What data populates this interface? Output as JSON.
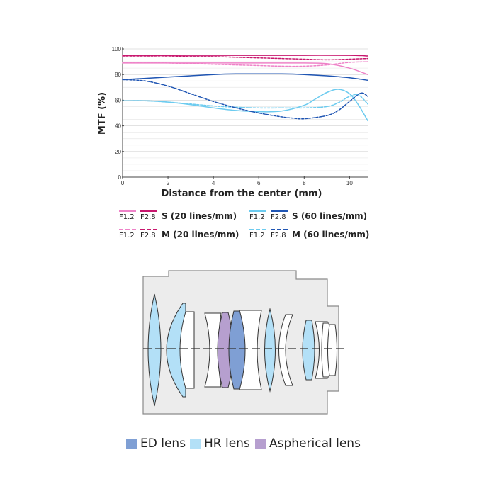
{
  "chart_data": {
    "type": "line",
    "title": "",
    "xlabel": "Distance from the center (mm)",
    "ylabel": "MTF (%)",
    "xlim": [
      0,
      10.8
    ],
    "ylim": [
      0,
      100
    ],
    "xticks": [
      "0",
      "2",
      "4",
      "6",
      "8",
      "10"
    ],
    "yticks": [
      "0",
      "20",
      "40",
      "60",
      "80",
      "100"
    ],
    "grid": true,
    "legend_position": "bottom",
    "series": [
      {
        "group": "S (20 lines/mm)",
        "aperture": "F1.2",
        "style": "solid",
        "color": "#ee82c8",
        "x": [
          0,
          1,
          2,
          3,
          4,
          5,
          6,
          7,
          8,
          9,
          10,
          10.8
        ],
        "y": [
          89,
          89,
          89,
          89,
          89,
          89,
          89,
          89,
          89,
          88.5,
          85,
          80
        ]
      },
      {
        "group": "S (20 lines/mm)",
        "aperture": "F2.8",
        "style": "solid",
        "color": "#c8176e",
        "x": [
          0,
          2,
          4,
          6,
          8,
          10,
          10.8
        ],
        "y": [
          95,
          95,
          95,
          95,
          95,
          95,
          94.5
        ]
      },
      {
        "group": "M (20 lines/mm)",
        "aperture": "F1.2",
        "style": "dashed",
        "color": "#ee82c8",
        "x": [
          0,
          1,
          2,
          3,
          4,
          5,
          6,
          7,
          8,
          9,
          10,
          10.8
        ],
        "y": [
          89.5,
          89.5,
          89,
          88.5,
          88,
          87.5,
          87,
          86.5,
          86.5,
          87.5,
          89.5,
          90
        ]
      },
      {
        "group": "M (20 lines/mm)",
        "aperture": "F2.8",
        "style": "dashed",
        "color": "#c8176e",
        "x": [
          0,
          1,
          2,
          3,
          4,
          5,
          6,
          7,
          8,
          9,
          10,
          10.8
        ],
        "y": [
          94.5,
          94.5,
          94.5,
          94,
          94,
          93.5,
          93,
          92.5,
          92,
          91.5,
          92,
          92.5
        ]
      },
      {
        "group": "S (60 lines/mm)",
        "aperture": "F1.2",
        "style": "solid",
        "color": "#6ccbef",
        "x": [
          0,
          1,
          2,
          3,
          4,
          5,
          6,
          7,
          8,
          8.5,
          9,
          9.5,
          10,
          10.4,
          10.8
        ],
        "y": [
          59.5,
          59.5,
          58.5,
          56.5,
          54,
          52,
          51,
          51.5,
          56,
          61,
          66,
          68.5,
          65,
          56,
          44
        ]
      },
      {
        "group": "S (60 lines/mm)",
        "aperture": "F2.8",
        "style": "solid",
        "color": "#1f55b3",
        "x": [
          0,
          1,
          2,
          3,
          4,
          5,
          6,
          7,
          8,
          9,
          10,
          10.8
        ],
        "y": [
          76,
          77,
          78,
          79,
          80,
          80.5,
          80.5,
          80.5,
          80,
          79,
          77.5,
          75.5
        ]
      },
      {
        "group": "M (60 lines/mm)",
        "aperture": "F1.2",
        "style": "dashed",
        "color": "#6ccbef",
        "x": [
          0,
          1,
          2,
          3,
          4,
          5,
          6,
          7,
          8,
          9,
          9.5,
          10,
          10.4,
          10.8
        ],
        "y": [
          59.5,
          59.5,
          58.5,
          57,
          55.5,
          54.5,
          54,
          54,
          54,
          55,
          58,
          63,
          64,
          57
        ]
      },
      {
        "group": "M (60 lines/mm)",
        "aperture": "F2.8",
        "style": "dashed",
        "color": "#1f55b3",
        "x": [
          0,
          1,
          2,
          3,
          4,
          5,
          6,
          7,
          7.5,
          8,
          9,
          9.5,
          10,
          10.5,
          10.8
        ],
        "y": [
          76,
          75,
          71,
          65,
          59,
          54,
          50,
          47,
          46,
          45.5,
          48,
          52,
          59,
          65.5,
          63
        ]
      }
    ]
  },
  "legend": {
    "groups": [
      {
        "label": "S (20 lines/mm)",
        "ap1": "F1.2",
        "ap2": "F2.8",
        "c1": "#ee82c8",
        "c2": "#c8176e",
        "style": "solid"
      },
      {
        "label": "M (20 lines/mm)",
        "ap1": "F1.2",
        "ap2": "F2.8",
        "c1": "#ee82c8",
        "c2": "#c8176e",
        "style": "dashed"
      },
      {
        "label": "S (60 lines/mm)",
        "ap1": "F1.2",
        "ap2": "F2.8",
        "c1": "#6ccbef",
        "c2": "#1f55b3",
        "style": "solid"
      },
      {
        "label": "M (60 lines/mm)",
        "ap1": "F1.2",
        "ap2": "F2.8",
        "c1": "#6ccbef",
        "c2": "#1f55b3",
        "style": "dashed"
      }
    ]
  },
  "lens_legend": [
    {
      "label": "ED lens",
      "color": "#7f9fd4"
    },
    {
      "label": "HR lens",
      "color": "#b3e0f7"
    },
    {
      "label": "Aspherical lens",
      "color": "#b69fcf"
    }
  ],
  "lens_colors": {
    "barrel_fill": "#ececec",
    "barrel_stroke": "#8a8a8a",
    "plain": "#ffffff",
    "ed": "#7f9fd4",
    "hr": "#b3e0f7",
    "asph": "#b69fcf"
  }
}
